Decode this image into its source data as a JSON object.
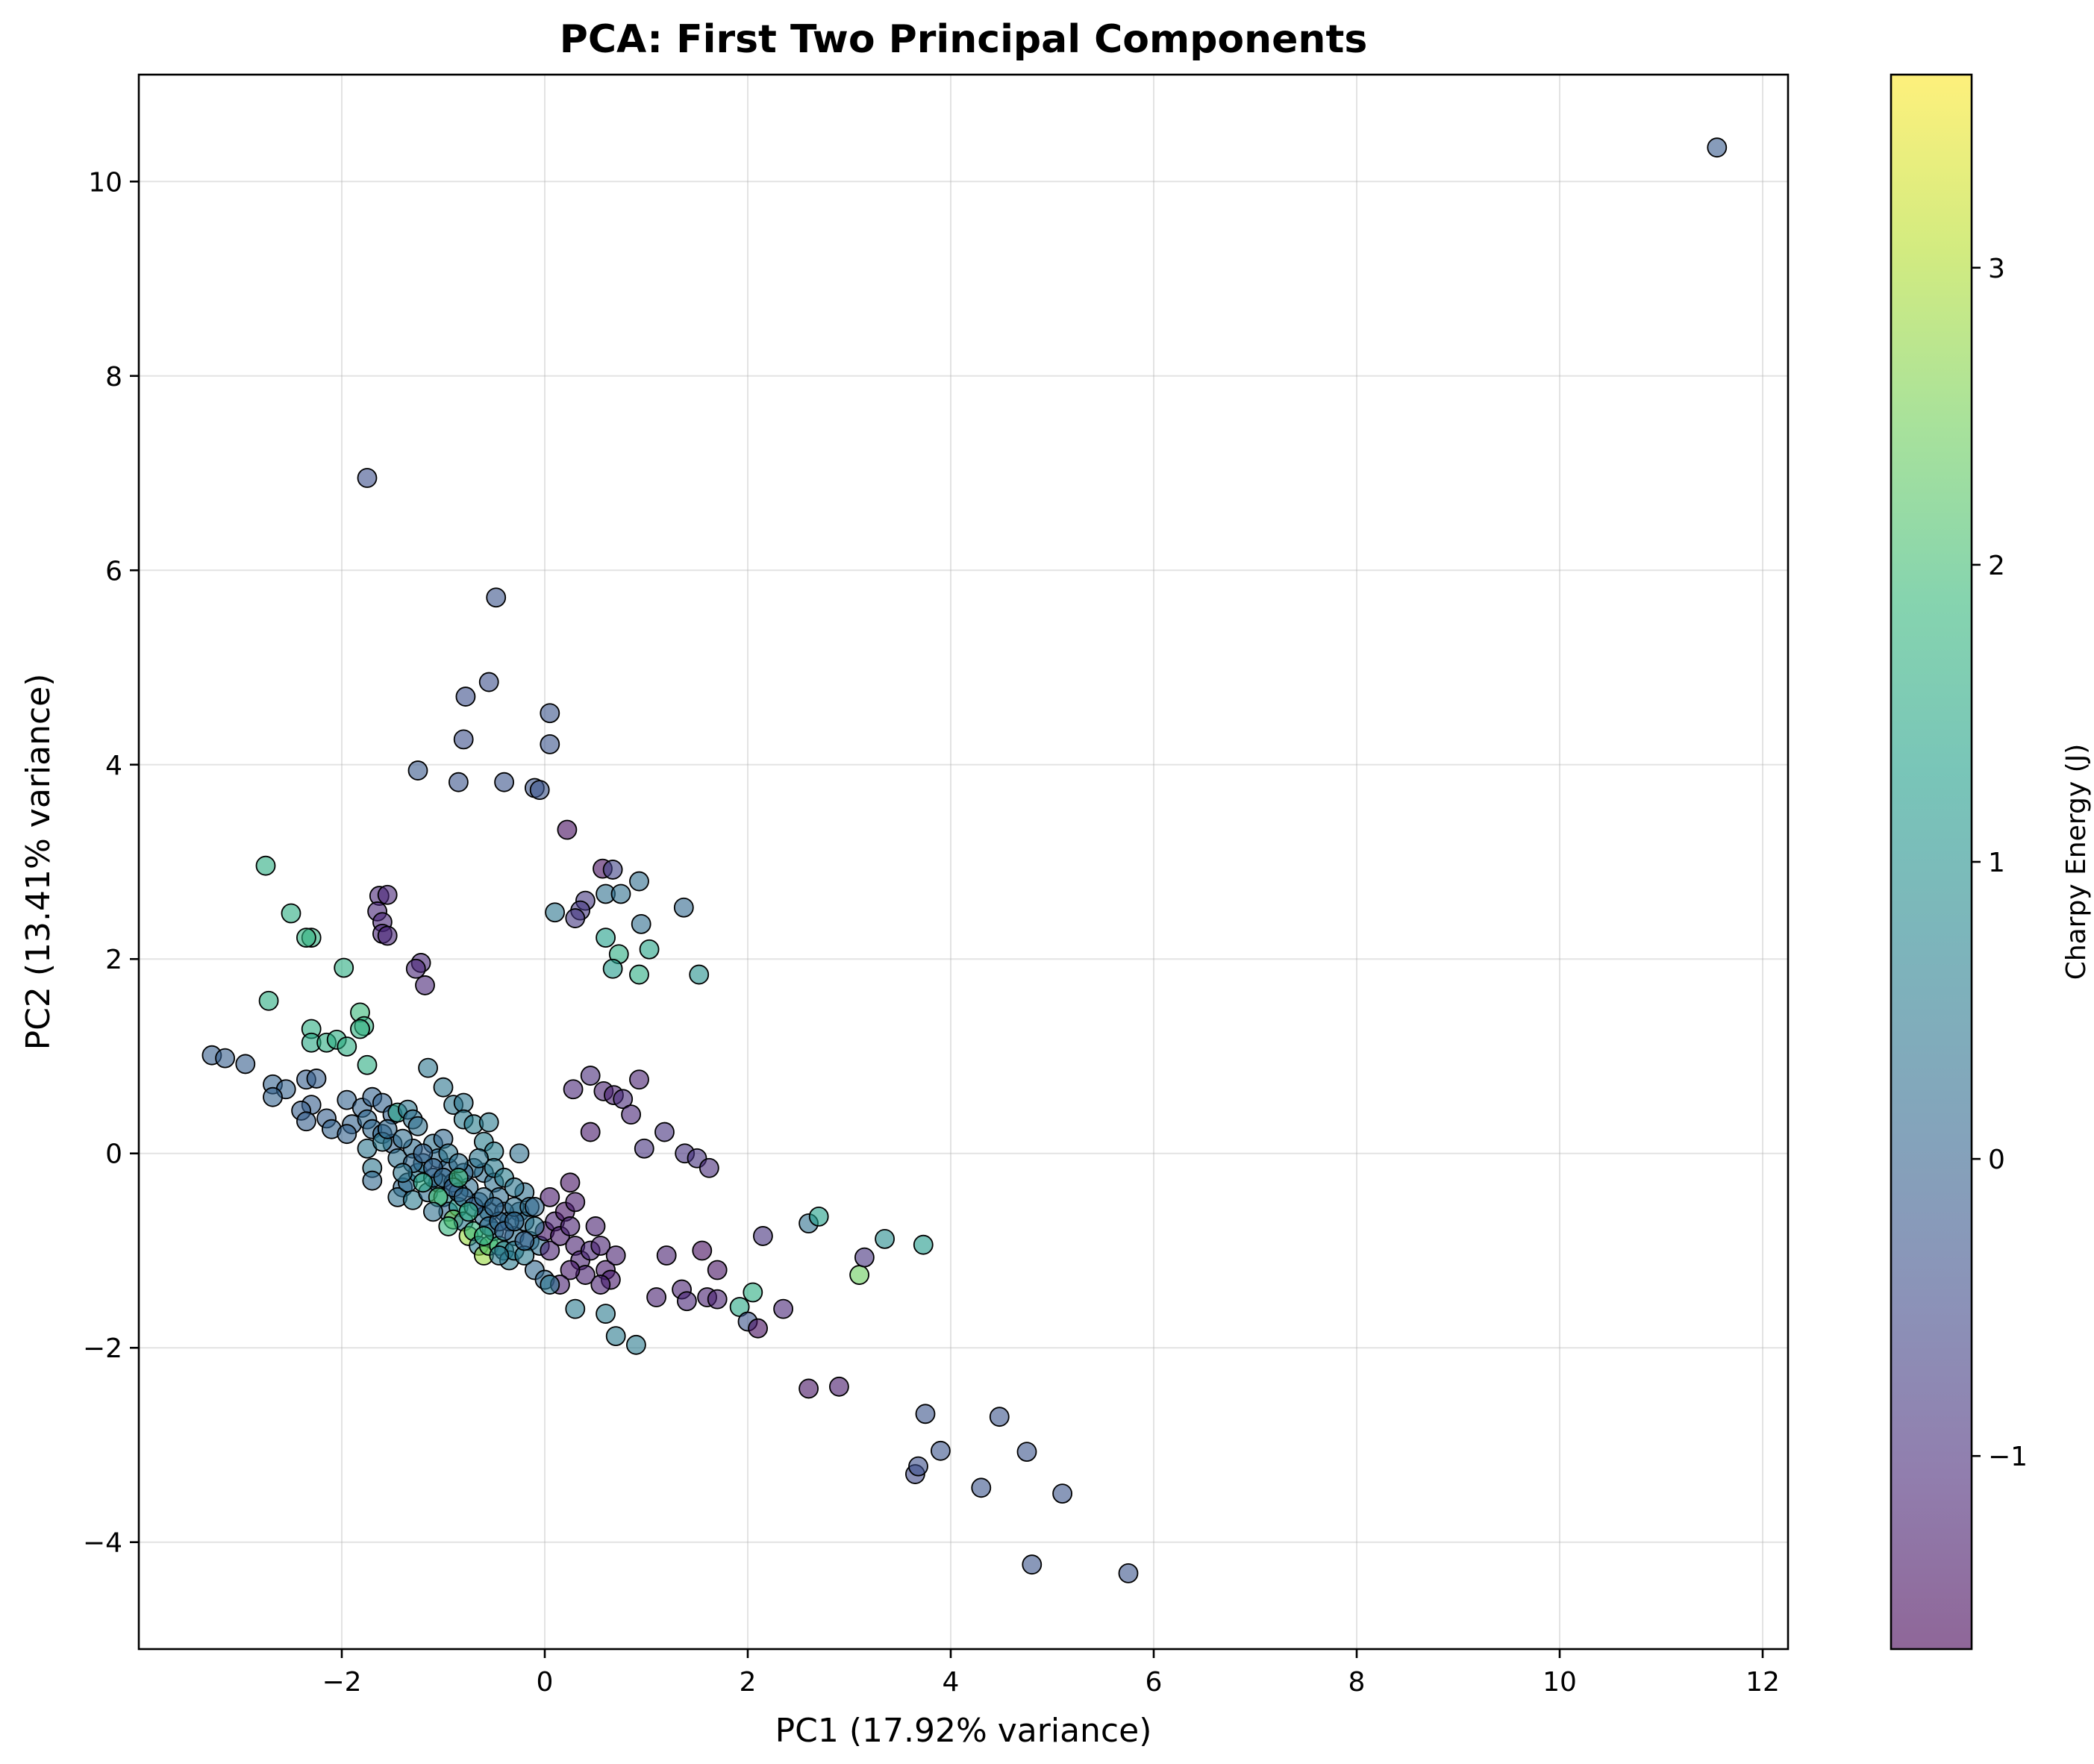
{
  "chart_data": {
    "type": "scatter",
    "title": "PCA: First Two Principal Components",
    "xlabel": "PC1 (17.92% variance)",
    "ylabel": "PC2 (13.41% variance)",
    "xlim": [
      -4.0,
      12.25
    ],
    "ylim": [
      -5.1,
      11.1
    ],
    "xticks": [
      -2,
      0,
      2,
      4,
      6,
      8,
      10,
      12
    ],
    "yticks": [
      -4,
      -2,
      0,
      2,
      4,
      6,
      8,
      10
    ],
    "xtick_labels": [
      "−2",
      "0",
      "2",
      "4",
      "6",
      "8",
      "10",
      "12"
    ],
    "ytick_labels": [
      "−4",
      "−2",
      "0",
      "2",
      "4",
      "6",
      "8",
      "10"
    ],
    "grid": true,
    "colorbar": {
      "label": "Charpy Energy (J)",
      "range": [
        -1.65,
        3.65
      ],
      "ticks": [
        -1,
        0,
        1,
        2,
        3
      ],
      "tick_labels": [
        "−1",
        "0",
        "1",
        "2",
        "3"
      ],
      "colormap": "viridis",
      "colormap_stops": [
        "#440154",
        "#482878",
        "#3e4a89",
        "#31688e",
        "#26828e",
        "#1f9e89",
        "#35b779",
        "#6ece58",
        "#b5de2b",
        "#fde725"
      ]
    },
    "points": [
      [
        11.55,
        10.35,
        -0.15
      ],
      [
        -1.75,
        6.95,
        -0.4
      ],
      [
        -0.48,
        5.72,
        -0.3
      ],
      [
        -0.55,
        4.85,
        -0.4
      ],
      [
        -0.78,
        4.7,
        -0.4
      ],
      [
        0.05,
        4.53,
        -0.3
      ],
      [
        -0.8,
        4.26,
        -0.4
      ],
      [
        0.05,
        4.21,
        -0.3
      ],
      [
        -1.25,
        3.94,
        -0.2
      ],
      [
        -0.85,
        3.82,
        -0.3
      ],
      [
        -0.4,
        3.82,
        -0.3
      ],
      [
        -0.1,
        3.76,
        -0.3
      ],
      [
        -0.05,
        3.74,
        -0.3
      ],
      [
        0.22,
        3.33,
        -1.5
      ],
      [
        -2.75,
        2.96,
        1.6
      ],
      [
        0.57,
        2.93,
        -1.5
      ],
      [
        0.67,
        2.92,
        -0.6
      ],
      [
        0.93,
        2.8,
        0.2
      ],
      [
        0.4,
        2.6,
        -0.8
      ],
      [
        0.35,
        2.5,
        -0.8
      ],
      [
        0.3,
        2.42,
        -0.8
      ],
      [
        0.6,
        2.67,
        0.3
      ],
      [
        0.75,
        2.67,
        0.3
      ],
      [
        1.37,
        2.53,
        0.1
      ],
      [
        0.1,
        2.48,
        0.4
      ],
      [
        0.95,
        2.36,
        0.2
      ],
      [
        -2.5,
        2.47,
        1.6
      ],
      [
        -2.3,
        2.22,
        1.7
      ],
      [
        -2.35,
        2.22,
        1.7
      ],
      [
        0.6,
        2.22,
        1.3
      ],
      [
        1.03,
        2.1,
        1.4
      ],
      [
        0.73,
        2.05,
        1.6
      ],
      [
        0.67,
        1.9,
        1.2
      ],
      [
        0.93,
        1.84,
        1.6
      ],
      [
        1.52,
        1.84,
        1.0
      ],
      [
        -1.98,
        1.91,
        1.6
      ],
      [
        -1.63,
        2.65,
        -1.1
      ],
      [
        -1.55,
        2.66,
        -1.1
      ],
      [
        -1.65,
        2.49,
        -1.1
      ],
      [
        -1.6,
        2.38,
        -1.1
      ],
      [
        -1.6,
        2.26,
        -1.1
      ],
      [
        -1.55,
        2.24,
        -1.1
      ],
      [
        -1.22,
        1.96,
        -1.1
      ],
      [
        -1.27,
        1.9,
        -1.1
      ],
      [
        -1.18,
        1.73,
        -1.1
      ],
      [
        -2.72,
        1.57,
        1.6
      ],
      [
        -2.3,
        1.28,
        1.6
      ],
      [
        -1.82,
        1.45,
        1.9
      ],
      [
        -1.78,
        1.31,
        1.7
      ],
      [
        -1.82,
        1.28,
        1.7
      ],
      [
        -2.3,
        1.14,
        1.5
      ],
      [
        -2.15,
        1.14,
        1.6
      ],
      [
        -2.05,
        1.17,
        1.6
      ],
      [
        -1.95,
        1.1,
        1.6
      ],
      [
        -1.75,
        0.91,
        1.6
      ],
      [
        -3.28,
        1.01,
        -0.1
      ],
      [
        -3.15,
        0.98,
        -0.1
      ],
      [
        -2.95,
        0.92,
        -0.1
      ],
      [
        -2.68,
        0.71,
        0.0
      ],
      [
        -2.55,
        0.66,
        0.0
      ],
      [
        -2.35,
        0.76,
        -0.1
      ],
      [
        -2.25,
        0.77,
        -0.1
      ],
      [
        -2.68,
        0.58,
        0.0
      ],
      [
        -2.3,
        0.5,
        -0.1
      ],
      [
        -2.4,
        0.44,
        -0.1
      ],
      [
        -2.35,
        0.33,
        -0.1
      ],
      [
        -2.15,
        0.36,
        -0.1
      ],
      [
        -2.1,
        0.25,
        0.0
      ],
      [
        -1.95,
        0.55,
        0.0
      ],
      [
        -1.9,
        0.3,
        0.0
      ],
      [
        -1.95,
        0.2,
        0.0
      ],
      [
        -1.8,
        0.47,
        0.0
      ],
      [
        -1.7,
        0.58,
        0.0
      ],
      [
        -1.6,
        0.52,
        0.0
      ],
      [
        -1.5,
        0.4,
        0.0
      ],
      [
        -1.75,
        0.35,
        0.1
      ],
      [
        -1.7,
        0.25,
        0.1
      ],
      [
        -1.6,
        0.2,
        0.1
      ],
      [
        -1.5,
        0.1,
        0.0
      ],
      [
        -1.75,
        0.05,
        0.4
      ],
      [
        -1.6,
        0.12,
        0.5
      ],
      [
        -1.45,
        0.42,
        1.4
      ],
      [
        -1.35,
        0.45,
        0.4
      ],
      [
        -1.3,
        0.35,
        0.3
      ],
      [
        -1.25,
        0.28,
        0.3
      ],
      [
        -1.15,
        0.88,
        0.4
      ],
      [
        -1.0,
        0.68,
        0.4
      ],
      [
        -0.9,
        0.5,
        0.4
      ],
      [
        -0.8,
        0.52,
        0.4
      ],
      [
        -0.8,
        0.35,
        0.5
      ],
      [
        -0.7,
        0.3,
        0.6
      ],
      [
        -0.55,
        0.32,
        0.5
      ],
      [
        -0.6,
        0.12,
        0.6
      ],
      [
        -0.5,
        0.02,
        0.6
      ],
      [
        -0.25,
        0.0,
        0.3
      ],
      [
        -1.7,
        -0.15,
        0.4
      ],
      [
        -1.7,
        -0.28,
        0.1
      ],
      [
        -1.45,
        -0.05,
        0.3
      ],
      [
        -1.4,
        -0.35,
        0.1
      ],
      [
        -1.45,
        -0.45,
        0.3
      ],
      [
        -1.35,
        -0.3,
        0.2
      ],
      [
        -1.25,
        -0.2,
        0.5
      ],
      [
        -1.3,
        -0.48,
        0.5
      ],
      [
        -1.15,
        -0.4,
        0.2
      ],
      [
        -1.1,
        0.1,
        0.3
      ],
      [
        -1.05,
        -0.05,
        0.2
      ],
      [
        -1.0,
        0.15,
        0.1
      ],
      [
        -0.95,
        -0.15,
        0.1
      ],
      [
        -1.05,
        -0.3,
        0.4
      ],
      [
        -1.0,
        -0.45,
        0.8
      ],
      [
        -0.9,
        -0.3,
        0.2
      ],
      [
        -0.95,
        -0.6,
        0.1
      ],
      [
        -0.85,
        -0.55,
        1.2
      ],
      [
        -0.9,
        -0.68,
        2.5
      ],
      [
        -0.8,
        -0.7,
        0.5
      ],
      [
        -0.75,
        -0.85,
        2.8
      ],
      [
        -0.7,
        -0.8,
        1.8
      ],
      [
        -0.65,
        -0.95,
        0.6
      ],
      [
        -0.6,
        -1.05,
        2.8
      ],
      [
        -0.55,
        -0.95,
        2.2
      ],
      [
        -0.5,
        -0.8,
        0.5
      ],
      [
        -0.55,
        -0.6,
        0.2
      ],
      [
        -0.45,
        -0.95,
        1.9
      ],
      [
        -0.4,
        -1.0,
        0.4
      ],
      [
        -0.35,
        -1.1,
        0.5
      ],
      [
        -0.3,
        -0.85,
        0.3
      ],
      [
        -0.25,
        -0.6,
        0.2
      ],
      [
        -0.2,
        -0.7,
        0.2
      ],
      [
        -0.2,
        -0.4,
        0.3
      ],
      [
        -0.15,
        -0.9,
        0.2
      ],
      [
        -0.1,
        -1.2,
        0.1
      ],
      [
        -0.05,
        -0.95,
        0.3
      ],
      [
        0.0,
        -1.3,
        0.1
      ],
      [
        -0.6,
        -0.2,
        0.2
      ],
      [
        -0.5,
        -0.3,
        0.3
      ],
      [
        -0.45,
        -0.45,
        0.2
      ],
      [
        -0.4,
        -0.6,
        0.1
      ],
      [
        -0.35,
        -0.7,
        0.2
      ],
      [
        -0.3,
        -0.55,
        0.3
      ],
      [
        -0.7,
        -0.15,
        0.3
      ],
      [
        -0.75,
        -0.35,
        0.2
      ],
      [
        -0.8,
        -0.2,
        0.1
      ],
      [
        -0.85,
        -0.4,
        0.2
      ],
      [
        -0.65,
        -0.5,
        0.1
      ],
      [
        -0.6,
        -0.65,
        0.3
      ],
      [
        -0.55,
        -0.75,
        0.2
      ],
      [
        -0.45,
        -0.7,
        0.1
      ],
      [
        0.0,
        -0.8,
        -1.3
      ],
      [
        0.05,
        -0.45,
        -1.3
      ],
      [
        0.1,
        -0.7,
        -1.2
      ],
      [
        0.05,
        -1.0,
        -1.2
      ],
      [
        0.15,
        -0.85,
        -1.3
      ],
      [
        0.2,
        -0.6,
        -1.4
      ],
      [
        0.25,
        -0.3,
        -1.4
      ],
      [
        0.3,
        -0.5,
        -1.3
      ],
      [
        0.25,
        -0.75,
        -1.2
      ],
      [
        0.3,
        -0.95,
        -1.2
      ],
      [
        0.35,
        -1.1,
        -1.2
      ],
      [
        0.4,
        -1.25,
        -1.2
      ],
      [
        0.45,
        -1.0,
        -1.1
      ],
      [
        0.5,
        -0.75,
        -1.2
      ],
      [
        0.55,
        -0.95,
        -1.2
      ],
      [
        0.6,
        -1.2,
        -1.3
      ],
      [
        0.65,
        -1.3,
        -1.3
      ],
      [
        0.7,
        -1.05,
        -1.2
      ],
      [
        0.25,
        -1.2,
        -1.3
      ],
      [
        0.15,
        -1.35,
        -1.2
      ],
      [
        0.55,
        -1.35,
        -1.2
      ],
      [
        0.3,
        -1.6,
        0.5
      ],
      [
        0.6,
        -1.65,
        0.5
      ],
      [
        0.7,
        -1.88,
        0.5
      ],
      [
        0.9,
        -1.97,
        0.5
      ],
      [
        0.05,
        -1.35,
        0.4
      ],
      [
        1.1,
        -1.48,
        -1.2
      ],
      [
        1.2,
        -1.05,
        -1.2
      ],
      [
        1.35,
        -1.4,
        -1.2
      ],
      [
        1.4,
        -1.52,
        -1.1
      ],
      [
        1.55,
        -1.0,
        -1.5
      ],
      [
        1.6,
        -1.48,
        -1.2
      ],
      [
        1.7,
        -1.2,
        -1.4
      ],
      [
        1.7,
        -1.5,
        -1.2
      ],
      [
        1.92,
        -1.58,
        1.5
      ],
      [
        2.0,
        -1.73,
        -0.3
      ],
      [
        2.05,
        -1.43,
        1.6
      ],
      [
        2.1,
        -1.8,
        -1.5
      ],
      [
        2.15,
        -0.85,
        -0.9
      ],
      [
        2.35,
        -1.6,
        -1.1
      ],
      [
        2.6,
        -0.72,
        0.3
      ],
      [
        2.6,
        -2.42,
        -1.4
      ],
      [
        2.7,
        -0.65,
        1.3
      ],
      [
        2.9,
        -2.4,
        -1.3
      ],
      [
        3.1,
        -1.25,
        2.4
      ],
      [
        3.15,
        -1.07,
        -0.9
      ],
      [
        3.35,
        -0.88,
        0.9
      ],
      [
        3.73,
        -0.94,
        1.2
      ],
      [
        3.65,
        -3.3,
        -0.5
      ],
      [
        3.68,
        -3.22,
        -0.4
      ],
      [
        3.75,
        -2.68,
        -0.3
      ],
      [
        3.9,
        -3.06,
        -0.3
      ],
      [
        4.3,
        -3.44,
        -0.3
      ],
      [
        4.48,
        -2.71,
        -0.3
      ],
      [
        4.75,
        -3.07,
        -0.3
      ],
      [
        4.8,
        -4.23,
        -0.3
      ],
      [
        5.1,
        -3.5,
        -0.3
      ],
      [
        5.75,
        -4.32,
        -0.3
      ],
      [
        0.28,
        0.66,
        -1.1
      ],
      [
        0.45,
        0.8,
        -1.0
      ],
      [
        0.45,
        0.22,
        -1.3
      ],
      [
        0.58,
        0.64,
        -1.2
      ],
      [
        0.68,
        0.6,
        -1.2
      ],
      [
        0.77,
        0.56,
        -1.0
      ],
      [
        0.85,
        0.4,
        -1.1
      ],
      [
        0.93,
        0.76,
        -1.2
      ],
      [
        0.98,
        0.05,
        -0.9
      ],
      [
        1.18,
        0.22,
        -0.9
      ],
      [
        1.38,
        0.0,
        -0.9
      ],
      [
        1.5,
        -0.05,
        -0.9
      ],
      [
        1.62,
        -0.15,
        -1.0
      ],
      [
        -1.3,
        0.05,
        0.2
      ],
      [
        -1.2,
        -0.1,
        0.3
      ],
      [
        -1.1,
        -0.25,
        0.2
      ],
      [
        -0.95,
        0.0,
        0.4
      ],
      [
        -0.85,
        -0.1,
        0.3
      ],
      [
        -0.65,
        -0.05,
        0.4
      ],
      [
        -0.5,
        -0.15,
        0.5
      ],
      [
        -0.4,
        -0.25,
        0.6
      ],
      [
        -0.3,
        -0.35,
        0.4
      ],
      [
        -0.15,
        -0.55,
        0.3
      ],
      [
        -0.1,
        -0.75,
        0.4
      ],
      [
        -0.3,
        -1.0,
        0.6
      ],
      [
        -0.2,
        -1.05,
        0.5
      ],
      [
        -0.45,
        -1.05,
        0.5
      ],
      [
        -1.55,
        0.25,
        0.1
      ],
      [
        -1.4,
        0.15,
        0.2
      ],
      [
        -1.3,
        -0.1,
        0.1
      ],
      [
        -1.2,
        0.0,
        0.0
      ],
      [
        -1.1,
        -0.15,
        0.0
      ],
      [
        -1.0,
        -0.25,
        0.1
      ],
      [
        -0.9,
        -0.35,
        0.0
      ],
      [
        -0.8,
        -0.45,
        0.1
      ],
      [
        -0.7,
        -0.55,
        0.0
      ],
      [
        -0.6,
        -0.45,
        0.2
      ],
      [
        -0.5,
        -0.55,
        0.1
      ],
      [
        -0.4,
        -0.8,
        0.0
      ],
      [
        -0.3,
        -0.7,
        0.1
      ],
      [
        -0.2,
        -0.9,
        0.0
      ],
      [
        -0.1,
        -0.55,
        0.1
      ],
      [
        -0.95,
        -0.75,
        1.8
      ],
      [
        -0.75,
        -0.6,
        1.6
      ],
      [
        -0.6,
        -0.85,
        1.7
      ],
      [
        -0.85,
        -0.25,
        1.9
      ],
      [
        -1.05,
        -0.45,
        2.0
      ],
      [
        -1.2,
        -0.3,
        1.5
      ],
      [
        -1.4,
        -0.2,
        0.4
      ],
      [
        -1.1,
        -0.6,
        0.3
      ]
    ]
  }
}
